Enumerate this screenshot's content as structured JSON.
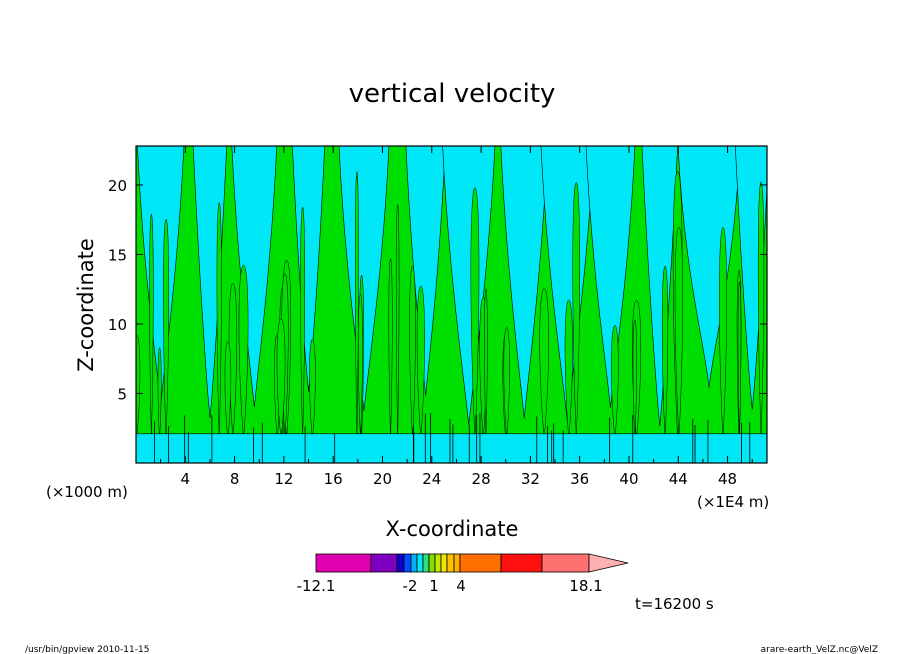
{
  "chart_data": {
    "type": "heatmap",
    "title": "vertical velocity",
    "xlabel": "X-coordinate",
    "ylabel": "Z-coordinate",
    "x_unit_left": "(×1000 m)",
    "x_unit_right": "(×1E4 m)",
    "xlim": [
      0,
      51.2
    ],
    "ylim": [
      0,
      22.8
    ],
    "xticks": [
      "4",
      "8",
      "12",
      "16",
      "20",
      "24",
      "28",
      "32",
      "36",
      "40",
      "44",
      "48"
    ],
    "yticks": [
      "5",
      "10",
      "15",
      "20"
    ],
    "colorbar": {
      "labels": [
        "-12.1",
        "-2",
        "1",
        "4",
        "18.1"
      ],
      "min": -12.1,
      "max": 18.1,
      "colors": [
        "#e000b0",
        "#8000c0",
        "#1000d0",
        "#0050ff",
        "#00b0ff",
        "#00e8f0",
        "#30e080",
        "#a0e000",
        "#f0e800",
        "#ffb000",
        "#ff7000",
        "#ff1010",
        "#ff7070",
        "#ffb0b0"
      ]
    },
    "field_colors": {
      "negative": "#00e8f8",
      "positive": "#00e000",
      "contour": "#000000"
    },
    "time_label": "t=16200 s"
  },
  "footer": {
    "left": "/usr/bin/gpview   2010-11-15",
    "right": "arare-earth_VelZ.nc@VelZ"
  }
}
